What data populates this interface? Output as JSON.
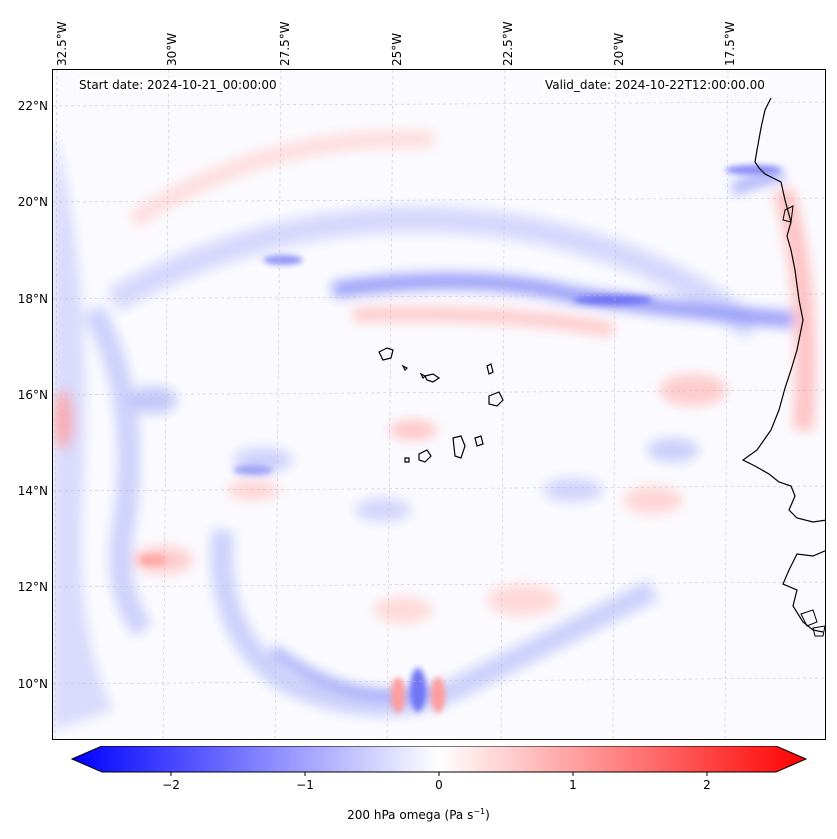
{
  "map": {
    "start_date": "Start date: 2024-10-21_00:00:00",
    "valid_date": "Valid_date: 2024-10-22T12:00:00.00",
    "longitude_labels": [
      "32.5°W",
      "30°W",
      "27.5°W",
      "25°W",
      "22.5°W",
      "20°W",
      "17.5°W"
    ],
    "latitude_labels": [
      "22°N",
      "20°N",
      "18°N",
      "16°N",
      "14°N",
      "12°N",
      "10°N"
    ],
    "colorbar": {
      "tick_labels": [
        "−2",
        "−1",
        "0",
        "1",
        "2"
      ],
      "range": [
        -2.6,
        2.6
      ],
      "title_main": "200 hPa omega (Pa s",
      "title_sup": "−1",
      "title_close": ")",
      "colors": {
        "negative": "#0000ff",
        "zero": "#ffffff",
        "positive": "#ff0000"
      }
    },
    "coastline_color": "#000000"
  }
}
